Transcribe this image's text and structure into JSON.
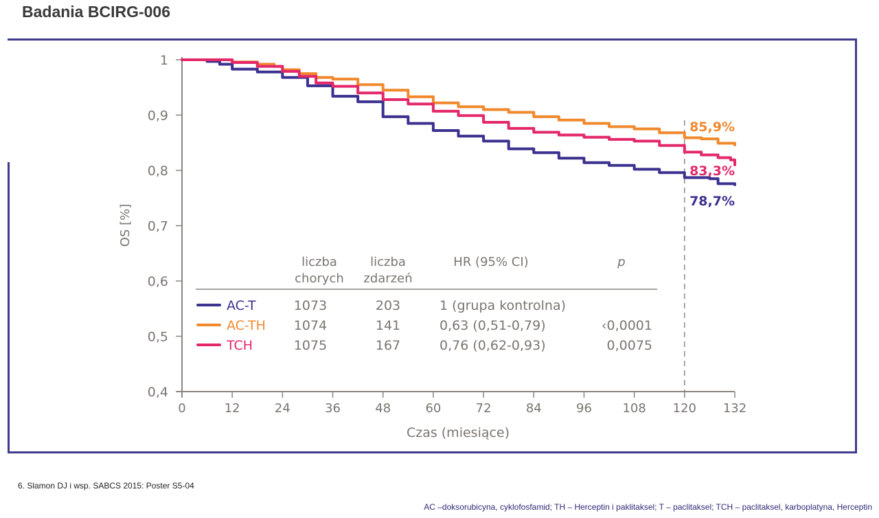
{
  "page": {
    "title": "Badania BCIRG-006",
    "reference": "6. Slamon DJ i wsp. SABCS 2015: Poster S5-04",
    "abbreviations": "AC –doksorubicyna, cyklofosfamid; TH – Herceptin  i paklitaksel; T – paclitaksel; TCH – paclitaksel, karboplatyna, Herceptin"
  },
  "colors": {
    "frame": "#3f3b8c",
    "axis": "#8a8580",
    "text": "#7a7570",
    "ac_t": "#3b318f",
    "ac_th": "#f0892e",
    "tch": "#e3286a"
  },
  "chart_data": {
    "type": "line",
    "title": "",
    "xlabel": "Czas (miesiące)",
    "ylabel": "OS [%]",
    "xlim": [
      0,
      132
    ],
    "ylim": [
      0.4,
      1
    ],
    "xticks": [
      0,
      12,
      24,
      36,
      48,
      60,
      72,
      84,
      96,
      108,
      120,
      132
    ],
    "xtick_labels": [
      "0",
      "12",
      "24",
      "36",
      "48",
      "60",
      "72",
      "84",
      "96",
      "108",
      "120",
      "132"
    ],
    "yticks": [
      0.4,
      0.5,
      0.6,
      0.7,
      0.8,
      0.9,
      1
    ],
    "ytick_labels": [
      "0,4",
      "0,5",
      "0,6",
      "0,7",
      "0,8",
      "0,9",
      "1"
    ],
    "grid": false,
    "reference_line": {
      "x": 120,
      "style": "dashed"
    },
    "series": [
      {
        "name": "AC-T",
        "color": "#3b318f",
        "x": [
          0,
          6,
          9,
          12,
          18,
          24,
          30,
          36,
          42,
          48,
          54,
          60,
          66,
          72,
          78,
          84,
          90,
          96,
          102,
          108,
          114,
          120,
          126,
          128,
          132
        ],
        "y": [
          1.0,
          0.997,
          0.992,
          0.983,
          0.978,
          0.968,
          0.953,
          0.934,
          0.924,
          0.897,
          0.885,
          0.872,
          0.862,
          0.853,
          0.839,
          0.832,
          0.822,
          0.814,
          0.809,
          0.802,
          0.796,
          0.787,
          0.785,
          0.776,
          0.774
        ],
        "end_label": "78,7%"
      },
      {
        "name": "AC-TH",
        "color": "#f0892e",
        "x": [
          0,
          12,
          18,
          22,
          24,
          28,
          32,
          36,
          42,
          48,
          54,
          60,
          66,
          72,
          78,
          84,
          90,
          96,
          102,
          108,
          114,
          120,
          124,
          128,
          132
        ],
        "y": [
          1.0,
          0.996,
          0.992,
          0.988,
          0.982,
          0.975,
          0.968,
          0.965,
          0.955,
          0.945,
          0.933,
          0.922,
          0.915,
          0.91,
          0.905,
          0.897,
          0.891,
          0.885,
          0.879,
          0.875,
          0.868,
          0.859,
          0.857,
          0.849,
          0.846
        ],
        "end_label": "85,9%"
      },
      {
        "name": "TCH",
        "color": "#e3286a",
        "x": [
          0,
          12,
          18,
          24,
          28,
          32,
          36,
          42,
          48,
          54,
          60,
          66,
          72,
          78,
          84,
          90,
          96,
          102,
          108,
          114,
          120,
          124,
          128,
          131,
          132
        ],
        "y": [
          1.0,
          0.995,
          0.988,
          0.979,
          0.97,
          0.958,
          0.952,
          0.94,
          0.928,
          0.92,
          0.907,
          0.899,
          0.887,
          0.876,
          0.869,
          0.864,
          0.86,
          0.856,
          0.853,
          0.845,
          0.833,
          0.828,
          0.823,
          0.819,
          0.81
        ],
        "end_label": "83,3%"
      }
    ],
    "table": {
      "headers": [
        [
          "liczba",
          "chorych"
        ],
        [
          "liczba",
          "zdarzeń"
        ],
        [
          "HR (95% CI)"
        ],
        [
          "p"
        ]
      ],
      "rows": [
        {
          "group": "AC-T",
          "patients": "1073",
          "events": "203",
          "hr": "1 (grupa kontrolna)",
          "p": ""
        },
        {
          "group": "AC-TH",
          "patients": "1074",
          "events": "141",
          "hr": "0,63 (0,51-0,79)",
          "p": "‹0,0001"
        },
        {
          "group": "TCH",
          "patients": "1075",
          "events": "167",
          "hr": "0,76 (0,62-0,93)",
          "p": "0,0075"
        }
      ]
    }
  }
}
